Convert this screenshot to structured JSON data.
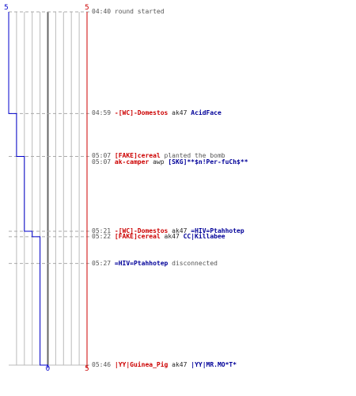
{
  "colors": {
    "team_blue": "#0000cc",
    "team_red": "#cc0000",
    "blue_name": "#000099",
    "red_name": "#cc0000",
    "time": "#555555",
    "grid": "#bbbbbb",
    "zero_line": "#666666",
    "dash": "#aaaaaa"
  },
  "chart_data": {
    "type": "line",
    "title": "",
    "x_axis": {
      "min": 0,
      "max": 5,
      "tick_count": 10,
      "labels": {
        "left": "5",
        "right": "5",
        "zero": "0"
      }
    },
    "y_axis": {
      "start": "04:40",
      "end": "05:46",
      "direction": "down"
    },
    "series": [
      {
        "color": "#0000cc",
        "step": true,
        "points": [
          {
            "time": "04:40",
            "value": 5
          },
          {
            "time": "04:59",
            "value": 4
          },
          {
            "time": "05:07",
            "value": 3
          },
          {
            "time": "05:21",
            "value": 2
          },
          {
            "time": "05:22",
            "value": 1
          },
          {
            "time": "05:46",
            "value": 0
          }
        ]
      },
      {
        "color": "#cc0000",
        "step": true,
        "points": [
          {
            "time": "04:40",
            "value": 5
          },
          {
            "time": "05:46",
            "value": 5
          }
        ]
      }
    ],
    "events": [
      {
        "time": "04:40",
        "parts": [
          {
            "text": "round started",
            "style": "gray"
          }
        ]
      },
      {
        "time": "04:59",
        "parts": [
          {
            "text": "-[WC]-Domestos",
            "style": "red"
          },
          {
            "text": " ak47 ",
            "style": "blk"
          },
          {
            "text": "AcidFace",
            "style": "blue"
          }
        ]
      },
      {
        "time": "05:07",
        "parts": [
          {
            "text": "[FAKE]cereal",
            "style": "red"
          },
          {
            "text": " planted the bomb",
            "style": "gray"
          }
        ]
      },
      {
        "time": "05:07",
        "parts": [
          {
            "text": "ak-camper",
            "style": "red"
          },
          {
            "text": " awp ",
            "style": "blk"
          },
          {
            "text": "[SKG]**$n!Per-fuCh$**",
            "style": "blue"
          }
        ]
      },
      {
        "time": "05:21",
        "parts": [
          {
            "text": "-[WC]-Domestos",
            "style": "red"
          },
          {
            "text": " ak47 ",
            "style": "blk"
          },
          {
            "text": "=HIV=Ptahhotep",
            "style": "blue"
          }
        ]
      },
      {
        "time": "05:22",
        "parts": [
          {
            "text": "[FAKE]cereal",
            "style": "red"
          },
          {
            "text": " ak47 ",
            "style": "blk"
          },
          {
            "text": "CC|Killabee",
            "style": "blue"
          }
        ]
      },
      {
        "time": "05:27",
        "parts": [
          {
            "text": "=HIV=Ptahhotep",
            "style": "blue"
          },
          {
            "text": " disconnected",
            "style": "gray"
          }
        ]
      },
      {
        "time": "05:46",
        "parts": [
          {
            "text": "|YY|Guinea_Pig",
            "style": "red"
          },
          {
            "text": " ak47 ",
            "style": "blk"
          },
          {
            "text": "|YY|MR.MO*T*",
            "style": "blue"
          }
        ]
      }
    ]
  }
}
